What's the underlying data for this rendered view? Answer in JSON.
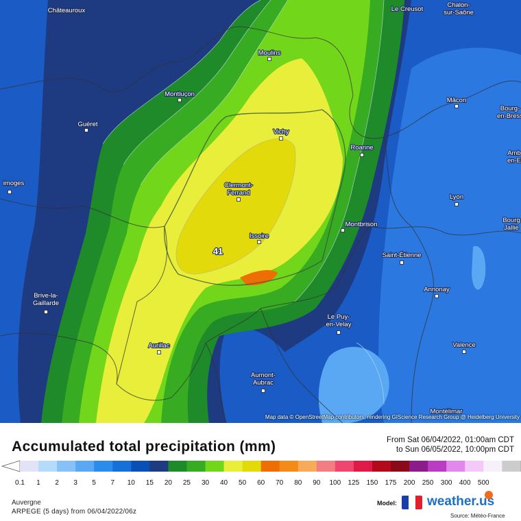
{
  "map": {
    "attribution": "Map data © OpenStreetMap contributors, rendering GIScience Research Group @ Heidelberg University",
    "max_marker": "41",
    "cities": [
      {
        "name": "Châteauroux",
        "line2": ""
      },
      {
        "name": "Le Creusot",
        "line2": ""
      },
      {
        "name": "Chalon-",
        "line2": "sur-Saône"
      },
      {
        "name": "Moulins",
        "line2": ""
      },
      {
        "name": "Montluçon",
        "line2": ""
      },
      {
        "name": "Mâcon",
        "line2": ""
      },
      {
        "name": "Guéret",
        "line2": ""
      },
      {
        "name": "Vichy",
        "line2": ""
      },
      {
        "name": "Bourg-",
        "line2": "en-Bress"
      },
      {
        "name": "Roanne",
        "line2": ""
      },
      {
        "name": "Amb",
        "line2": "en-E"
      },
      {
        "name": "imoges",
        "line2": ""
      },
      {
        "name": "Clermont-",
        "line2": "Ferrand"
      },
      {
        "name": "Lyon",
        "line2": ""
      },
      {
        "name": "Bourg",
        "line2": "Jallie"
      },
      {
        "name": "Montbrison",
        "line2": ""
      },
      {
        "name": "Issoire",
        "line2": ""
      },
      {
        "name": "Saint-Étienne",
        "line2": ""
      },
      {
        "name": "Brive-la-",
        "line2": "Gaillarde"
      },
      {
        "name": "Annonay",
        "line2": ""
      },
      {
        "name": "Le Puy-",
        "line2": "en-Velay"
      },
      {
        "name": "Aurillac",
        "line2": ""
      },
      {
        "name": "Valence",
        "line2": ""
      },
      {
        "name": "Aumont-",
        "line2": "Aubrac"
      },
      {
        "name": "Montélimar",
        "line2": ""
      }
    ]
  },
  "legend": {
    "title": "Accumulated total precipitation (mm)",
    "from": "From Sat 06/04/2022, 01:00am CDT",
    "to": "to Sun 06/05/2022, 10:00pm CDT",
    "scale_values": [
      "0.1",
      "1",
      "2",
      "3",
      "5",
      "7",
      "10",
      "15",
      "20",
      "25",
      "30",
      "40",
      "50",
      "60",
      "70",
      "80",
      "90",
      "100",
      "125",
      "150",
      "175",
      "200",
      "250",
      "300",
      "400",
      "500"
    ],
    "scale_colors": [
      "#e3e3f8",
      "#b4dcfa",
      "#86c2f8",
      "#5aa8f4",
      "#2c8cec",
      "#1670d8",
      "#0a4fb4",
      "#1e3a80",
      "#1e8a2a",
      "#37ab21",
      "#72d61a",
      "#e8ee3a",
      "#e2da0a",
      "#ee6e06",
      "#f48a18",
      "#f6aa5a",
      "#f27e84",
      "#ee466e",
      "#de1a48",
      "#b20a1a",
      "#8a0a1a",
      "#8c1c8a",
      "#ba3cc2",
      "#e288ec",
      "#f4c8f8",
      "#f6f0fa",
      "#cccccc"
    ]
  },
  "info": {
    "region": "Auvergne",
    "model_run": "ARPEGE (5 days) from 06/04/2022/06z",
    "model_label": "Model:",
    "brand": "weather.us",
    "source": "Source: Météo-France"
  },
  "colors": {
    "flag_blue": "#1b3fa8",
    "flag_white": "#ffffff",
    "flag_red": "#e0202c"
  }
}
